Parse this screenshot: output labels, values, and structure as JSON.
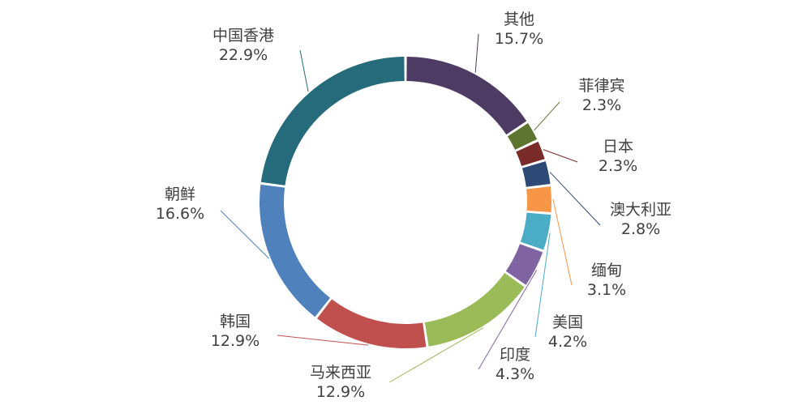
{
  "chart_data": {
    "type": "pie",
    "title": "",
    "donut": true,
    "start_angle_deg": 0,
    "direction": "clockwise",
    "slices": [
      {
        "name": "其他",
        "value": 15.7,
        "label": "15.7%",
        "color": "#4e3b63"
      },
      {
        "name": "菲律宾",
        "value": 2.3,
        "label": "2.3%",
        "color": "#5e7531"
      },
      {
        "name": "日本",
        "value": 2.3,
        "label": "2.3%",
        "color": "#7b2a2a"
      },
      {
        "name": "澳大利亚",
        "value": 2.8,
        "label": "2.8%",
        "color": "#2c4a75"
      },
      {
        "name": "缅甸",
        "value": 3.1,
        "label": "3.1%",
        "color": "#f79646"
      },
      {
        "name": "美国",
        "value": 4.2,
        "label": "4.2%",
        "color": "#4bacc6"
      },
      {
        "name": "印度",
        "value": 4.3,
        "label": "4.3%",
        "color": "#8064a2"
      },
      {
        "name": "马来西亚",
        "value": 12.9,
        "label": "12.9%",
        "color": "#9bbb59"
      },
      {
        "name": "韩国",
        "value": 12.9,
        "label": "12.9%",
        "color": "#c0504d"
      },
      {
        "name": "朝鲜",
        "value": 16.6,
        "label": "16.6%",
        "color": "#4f81bd"
      },
      {
        "name": "中国香港",
        "value": 22.9,
        "label": "22.9%",
        "color": "#256b7c"
      }
    ]
  }
}
